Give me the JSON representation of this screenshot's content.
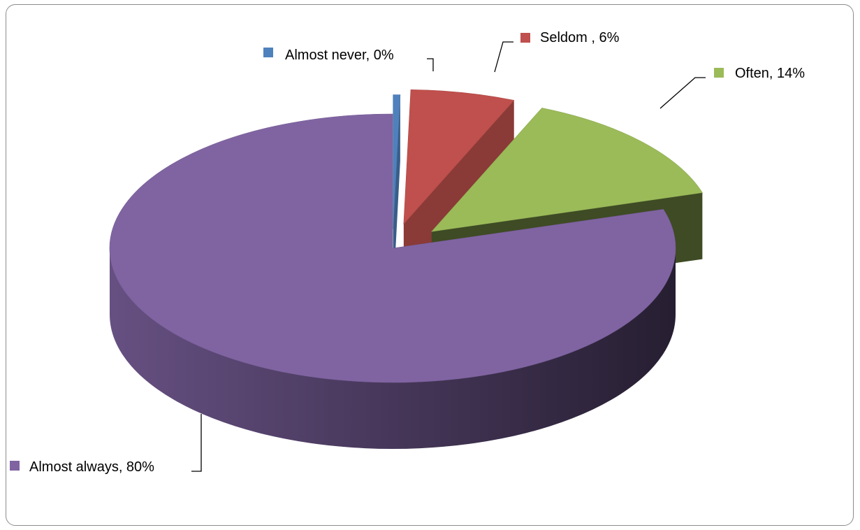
{
  "chart_data": {
    "type": "pie",
    "title": "",
    "style": "3d-exploded",
    "legend": "none",
    "categories": [
      "Almost never",
      "Seldom",
      "Often",
      "Almost always"
    ],
    "values": [
      0.4,
      6,
      14,
      80
    ],
    "labels": [
      "Almost never,  0%",
      "Seldom , 6%",
      "Often, 14%",
      "Almost always, 80%"
    ],
    "colors": [
      "#4f81bd",
      "#c0504d",
      "#9bbb59",
      "#8064a2"
    ]
  }
}
